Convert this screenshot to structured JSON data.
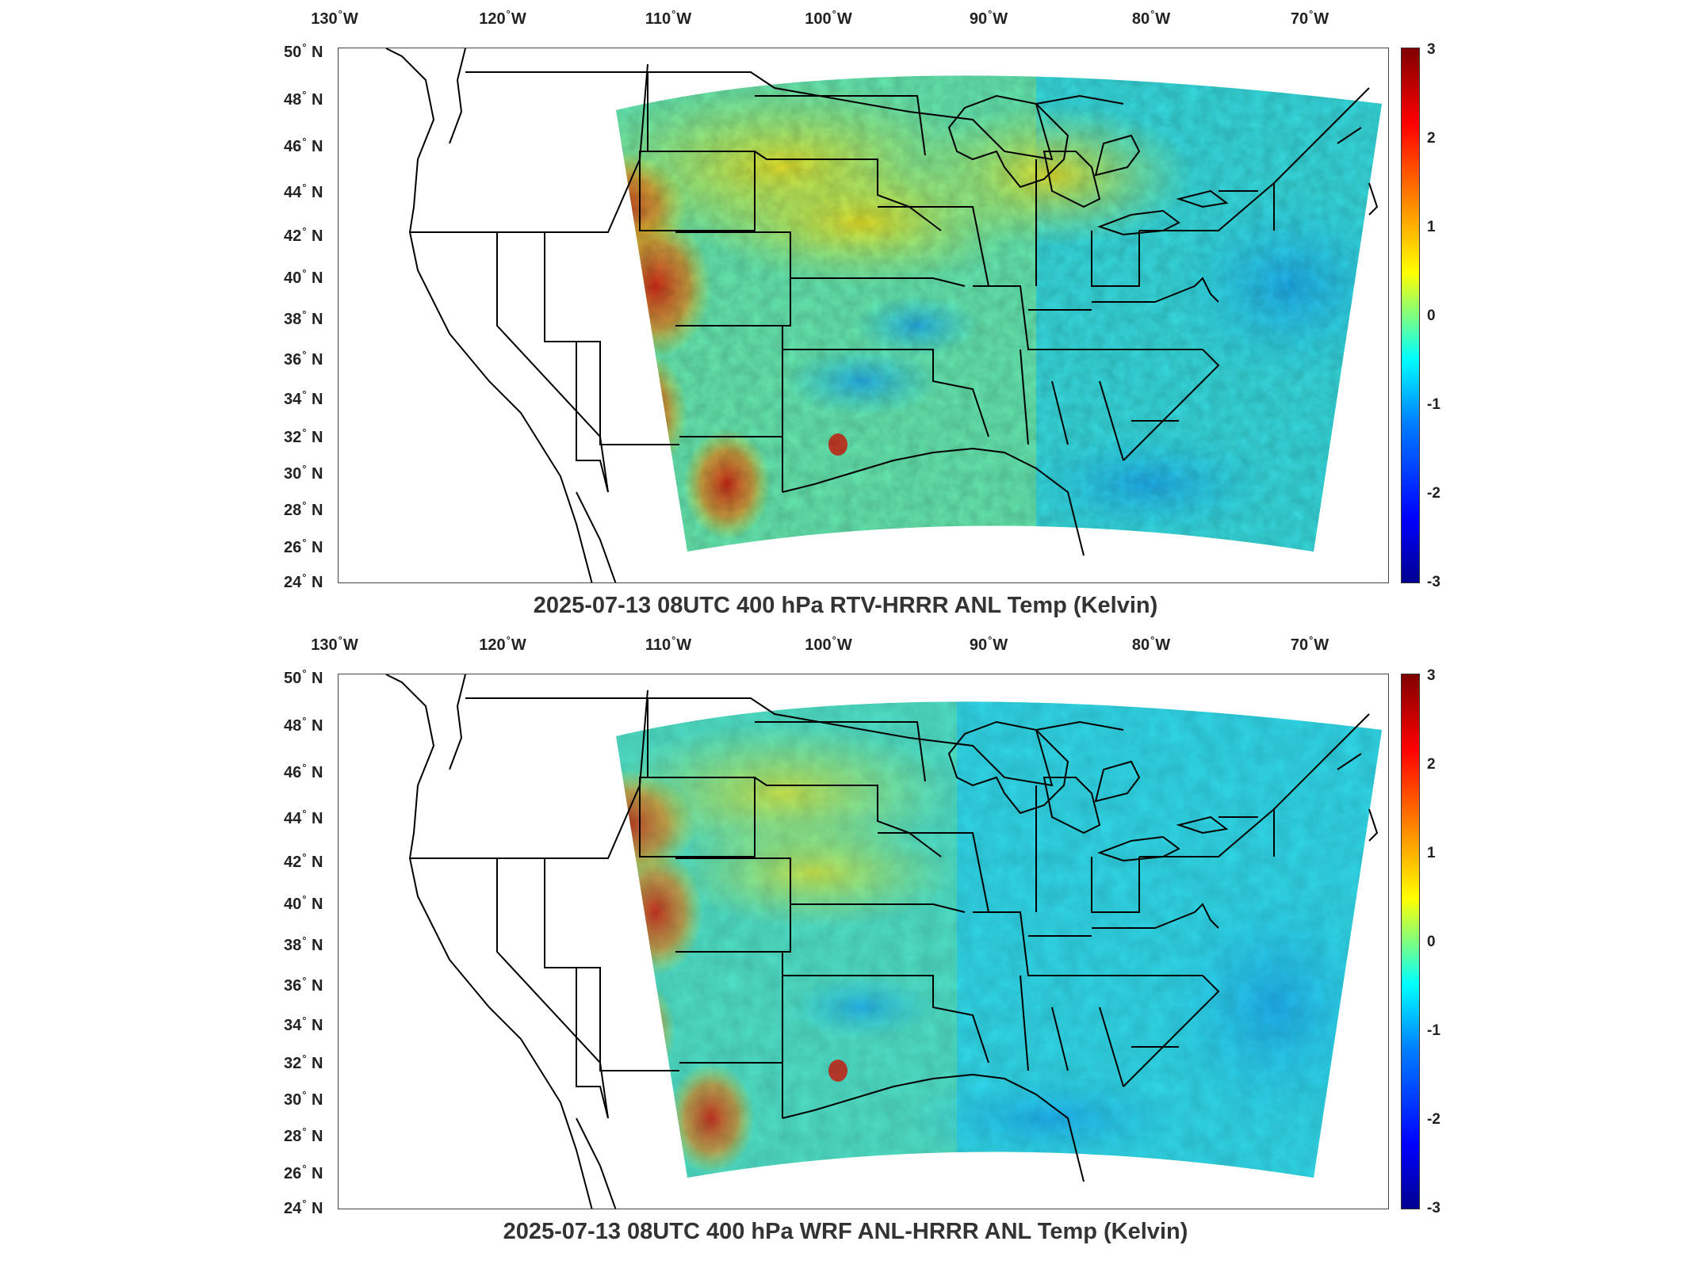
{
  "panels": [
    {
      "id": "top",
      "title": "2025-07-13 08UTC 400 hPa RTV-HRRR ANL Temp (Kelvin)",
      "lon_labels": [
        "130",
        "120",
        "110",
        "100",
        "90",
        "80",
        "70"
      ],
      "lon_suffix": "W",
      "lat_labels": [
        "50",
        "48",
        "46",
        "44",
        "42",
        "40",
        "38",
        "36",
        "34",
        "32",
        "30",
        "28",
        "26",
        "24"
      ],
      "lat_suffix": "N",
      "colorbar_ticks": [
        "3",
        "2",
        "1",
        "0",
        "-1",
        "-2",
        "-3"
      ]
    },
    {
      "id": "bottom",
      "title": "2025-07-13 08UTC 400 hPa WRF ANL-HRRR ANL Temp (Kelvin)",
      "lon_labels": [
        "130",
        "120",
        "110",
        "100",
        "90",
        "80",
        "70"
      ],
      "lon_suffix": "W",
      "lat_labels": [
        "50",
        "48",
        "46",
        "44",
        "42",
        "40",
        "38",
        "36",
        "34",
        "32",
        "30",
        "28",
        "26",
        "24"
      ],
      "lat_suffix": "N",
      "colorbar_ticks": [
        "3",
        "2",
        "1",
        "0",
        "-1",
        "-2",
        "-3"
      ]
    }
  ],
  "colors": {
    "neutral": "#4fe6b8",
    "cool": "#29d3f0",
    "warm": "#f2e21c",
    "hot": "#f07a10",
    "very_hot": "#c81a0a",
    "cold": "#1a6cf0"
  }
}
